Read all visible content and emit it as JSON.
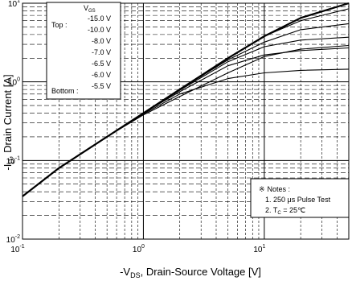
{
  "chart_data": {
    "type": "line",
    "title": "",
    "xlabel": {
      "pre": "-V",
      "sub": "DS",
      "post": ", Drain-Source Voltage [V]"
    },
    "ylabel": {
      "pre": "-I",
      "sub": "D",
      "post": ", Drain Current [A]"
    },
    "xscale": "log",
    "yscale": "log",
    "xlim": [
      0.1,
      50
    ],
    "ylim": [
      0.01,
      10
    ],
    "grid": true,
    "x_ticks": [
      {
        "value": 0.1,
        "base": "10",
        "exp": "-1"
      },
      {
        "value": 1,
        "base": "10",
        "exp": "0"
      },
      {
        "value": 10,
        "base": "10",
        "exp": "1"
      }
    ],
    "y_ticks": [
      {
        "value": 0.01,
        "base": "10",
        "exp": "-2"
      },
      {
        "value": 0.1,
        "base": "10",
        "exp": "-1"
      },
      {
        "value": 1,
        "base": "10",
        "exp": "0"
      },
      {
        "value": 10,
        "base": "10",
        "exp": "1"
      }
    ],
    "legend": {
      "header_pre": "V",
      "header_sub": "GS",
      "top_label": "Top :",
      "bottom_label": "Bottom :",
      "entries": [
        "-15.0 V",
        "-10.0 V",
        "-8.0 V",
        "-7.0 V",
        "-6.5 V",
        "-6.0 V",
        "-5.5 V"
      ]
    },
    "notes": {
      "symbol": "※",
      "title": "Notes :",
      "line1": "1. 250 μs Pulse Test",
      "line2_pre": "2. T",
      "line2_sub": "C",
      "line2_post": " = 25℃"
    },
    "series": [
      {
        "name": "-15.0 V",
        "x": [
          0.1,
          0.2,
          0.5,
          1,
          2,
          5,
          10,
          20,
          50
        ],
        "y": [
          0.035,
          0.08,
          0.2,
          0.4,
          0.8,
          2.0,
          3.8,
          6.5,
          10.0
        ]
      },
      {
        "name": "-10.0 V",
        "x": [
          0.1,
          0.2,
          0.5,
          1,
          2,
          5,
          10,
          20,
          50
        ],
        "y": [
          0.035,
          0.08,
          0.2,
          0.4,
          0.8,
          2.0,
          3.8,
          6.0,
          8.5
        ]
      },
      {
        "name": "-8.0 V",
        "x": [
          0.1,
          0.2,
          0.5,
          1,
          2,
          5,
          10,
          20,
          50
        ],
        "y": [
          0.035,
          0.08,
          0.2,
          0.4,
          0.8,
          1.9,
          3.2,
          4.6,
          5.5
        ]
      },
      {
        "name": "-7.0 V",
        "x": [
          0.1,
          0.2,
          0.5,
          1,
          2,
          5,
          10,
          20,
          50
        ],
        "y": [
          0.035,
          0.08,
          0.2,
          0.4,
          0.78,
          1.8,
          2.8,
          3.4,
          3.7
        ]
      },
      {
        "name": "-6.5 V",
        "x": [
          0.1,
          0.2,
          0.5,
          1,
          2,
          5,
          10,
          20,
          50
        ],
        "y": [
          0.035,
          0.08,
          0.2,
          0.4,
          0.75,
          1.6,
          2.2,
          2.5,
          2.7
        ]
      },
      {
        "name": "-6.0 V",
        "x": [
          0.1,
          0.2,
          0.5,
          1,
          2,
          5,
          10,
          20,
          50
        ],
        "y": [
          0.035,
          0.08,
          0.2,
          0.39,
          0.7,
          1.1,
          1.3,
          1.4,
          1.45
        ]
      },
      {
        "name": "-5.5 V",
        "x": [
          0.1,
          0.2,
          0.5,
          1,
          2,
          5,
          10,
          20,
          50
        ],
        "y": [
          0.035,
          0.08,
          0.2,
          0.38,
          0.65,
          1.3,
          2.1,
          2.6,
          2.9
        ]
      }
    ]
  }
}
